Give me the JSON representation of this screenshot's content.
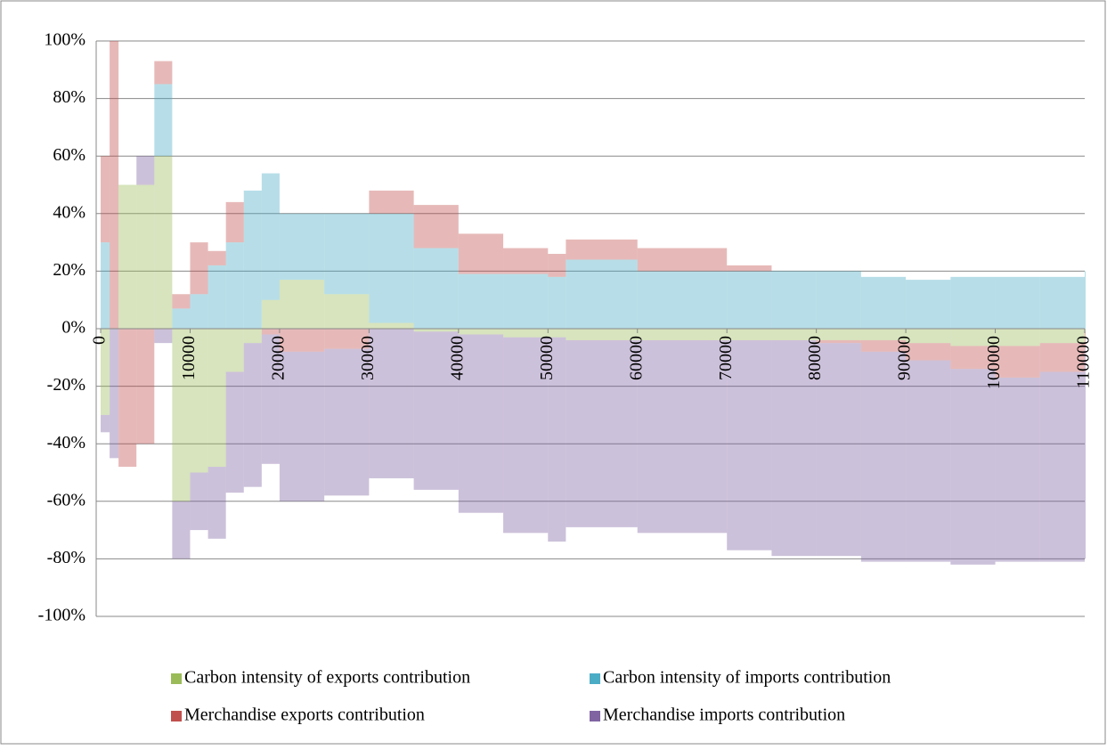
{
  "chart_data": {
    "type": "bar",
    "stacked": true,
    "x": [
      0,
      1000,
      2000,
      4000,
      6000,
      8000,
      10000,
      12000,
      14000,
      16000,
      18000,
      20000,
      25000,
      30000,
      35000,
      40000,
      45000,
      50000,
      52000,
      60000,
      70000,
      75000,
      80000,
      85000,
      90000,
      95000,
      100000,
      105000,
      110000
    ],
    "series": [
      {
        "name": "Carbon intensity of exports contribution",
        "color": "#9bbb59",
        "values": [
          -30,
          0,
          50,
          50,
          60,
          -60,
          -50,
          -48,
          -15,
          -5,
          10,
          17,
          12,
          2,
          -1,
          -2,
          -3,
          -3,
          -4,
          -4,
          -4,
          -4,
          -4,
          -4,
          -5,
          -6,
          -6,
          -5,
          -1
        ]
      },
      {
        "name": "Carbon intensity of imports contribution",
        "color": "#4bacc6",
        "values": [
          30,
          0,
          0,
          0,
          25,
          7,
          12,
          22,
          30,
          48,
          44,
          23,
          28,
          38,
          28,
          19,
          19,
          18,
          24,
          20,
          20,
          20,
          20,
          18,
          17,
          18,
          18,
          18,
          20
        ]
      },
      {
        "name": "Merchandise exports contribution",
        "color": "#c0504d",
        "values": [
          30,
          100,
          -48,
          -40,
          8,
          5,
          18,
          5,
          14,
          0,
          -2,
          -8,
          -7,
          8,
          15,
          14,
          9,
          8,
          7,
          8,
          2,
          0,
          -1,
          -4,
          -6,
          -8,
          -11,
          -10,
          -6
        ]
      },
      {
        "name": "Merchandise imports contribution",
        "color": "#8064a2",
        "values": [
          -6,
          -45,
          0,
          10,
          -5,
          -20,
          -20,
          -25,
          -42,
          -50,
          -45,
          -52,
          -51,
          -52,
          -55,
          -62,
          -68,
          -71,
          -65,
          -67,
          -73,
          -75,
          -74,
          -73,
          -70,
          -68,
          -64,
          -66,
          -73
        ]
      }
    ],
    "xlim": [
      -500,
      110000
    ],
    "xticks": [
      0,
      10000,
      20000,
      30000,
      40000,
      50000,
      60000,
      70000,
      80000,
      90000,
      100000,
      110000
    ],
    "ylim": [
      -100,
      100
    ],
    "yticks": [
      {
        "value": -100,
        "label": "-100%"
      },
      {
        "value": -80,
        "label": "-80%"
      },
      {
        "value": -60,
        "label": "-60%"
      },
      {
        "value": -40,
        "label": "-40%"
      },
      {
        "value": -20,
        "label": "-20%"
      },
      {
        "value": 0,
        "label": "0%"
      },
      {
        "value": 20,
        "label": "20%"
      },
      {
        "value": 40,
        "label": "40%"
      },
      {
        "value": 60,
        "label": "60%"
      },
      {
        "value": 80,
        "label": "80%"
      },
      {
        "value": 100,
        "label": "100%"
      }
    ],
    "grid": true
  }
}
